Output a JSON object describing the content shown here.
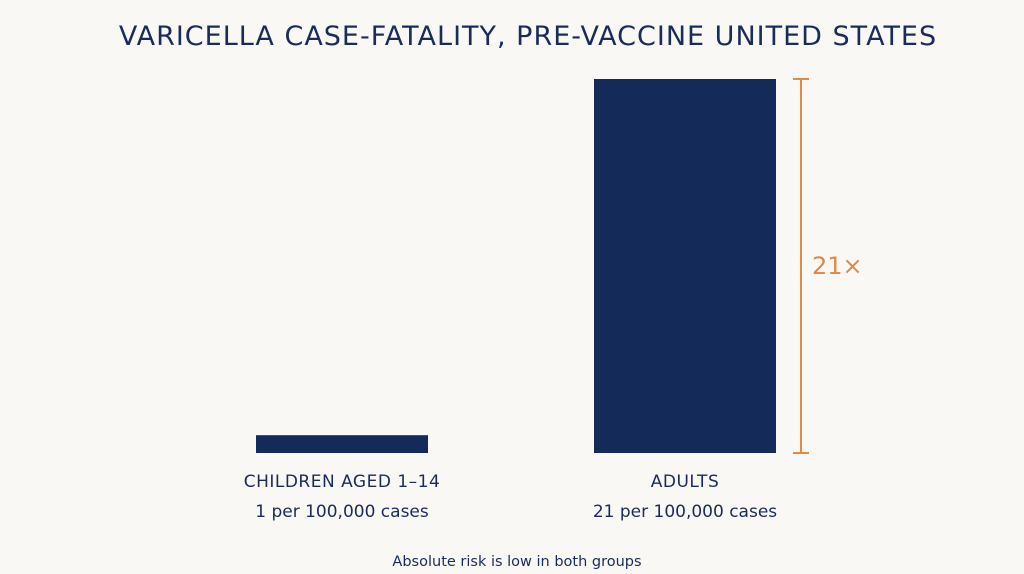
{
  "colors": {
    "background": "#faf8f4",
    "bar": "#142b5a",
    "text": "#1a2c5a",
    "accent": "#e08a45"
  },
  "chart_data": {
    "type": "bar",
    "title": "VARICELLA CASE-FATALITY, PRE-VACCINE UNITED STATES",
    "xlabel": "",
    "ylabel": "",
    "categories": [
      "CHILDREN AGED 1–14",
      "ADULTS"
    ],
    "values": [
      1,
      21
    ],
    "value_labels": [
      "1 per 100,000 cases",
      "21 per 100,000 cases"
    ],
    "ylim": [
      0,
      21
    ],
    "grid": false,
    "annotation": {
      "label": "21×",
      "type": "ratio-bracket",
      "from_value": 0,
      "to_value": 21
    },
    "footnote": "Absolute risk is low in both groups"
  }
}
